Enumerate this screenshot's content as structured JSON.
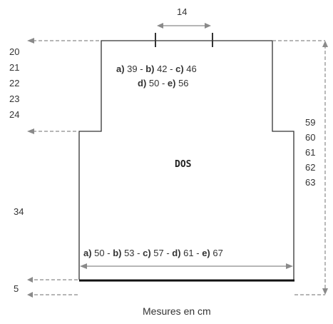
{
  "diagram": {
    "neck_width": "14",
    "shoulder_sizes": {
      "line1": [
        {
          "letter": "a)",
          "value": " 39 - "
        },
        {
          "letter": "b)",
          "value": " 42 - "
        },
        {
          "letter": "c)",
          "value": " 46"
        }
      ],
      "line2": [
        {
          "letter": "d)",
          "value": " 50 - "
        },
        {
          "letter": "e)",
          "value": " 56"
        }
      ]
    },
    "piece_label": "DOS",
    "width_sizes": [
      {
        "letter": "a)",
        "value": " 50 - "
      },
      {
        "letter": "b)",
        "value": " 53 - "
      },
      {
        "letter": "c)",
        "value": " 57 - "
      },
      {
        "letter": "d)",
        "value": " 61 - "
      },
      {
        "letter": "e)",
        "value": " 67"
      }
    ],
    "armhole_heights": [
      "20",
      "21",
      "22",
      "23",
      "24"
    ],
    "total_heights": [
      "59",
      "60",
      "61",
      "62",
      "63"
    ],
    "body_height": "34",
    "rib_height": "5",
    "caption": "Mesures en cm"
  }
}
